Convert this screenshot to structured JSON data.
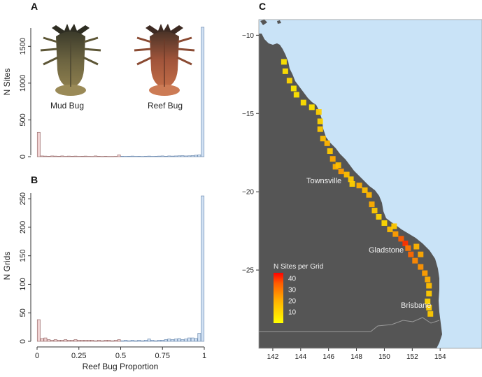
{
  "chart_data": [
    {
      "panel": "A",
      "type": "bar",
      "xlabel": "",
      "ylabel": "N Sites",
      "xlim": [
        0,
        1
      ],
      "ylim": [
        0,
        1750
      ],
      "yticks": [
        0,
        500,
        1000,
        1500
      ],
      "bin_width": 0.02,
      "bins_start": [
        0,
        0.02,
        0.04,
        0.06,
        0.08,
        0.1,
        0.12,
        0.14,
        0.16,
        0.18,
        0.2,
        0.22,
        0.24,
        0.26,
        0.28,
        0.3,
        0.32,
        0.34,
        0.36,
        0.38,
        0.4,
        0.42,
        0.44,
        0.46,
        0.48,
        0.5,
        0.52,
        0.54,
        0.56,
        0.58,
        0.6,
        0.62,
        0.64,
        0.66,
        0.68,
        0.7,
        0.72,
        0.74,
        0.76,
        0.78,
        0.8,
        0.82,
        0.84,
        0.86,
        0.88,
        0.9,
        0.92,
        0.94,
        0.96,
        0.98
      ],
      "values": [
        330,
        10,
        8,
        6,
        10,
        8,
        6,
        10,
        5,
        8,
        6,
        8,
        5,
        6,
        8,
        5,
        4,
        10,
        6,
        4,
        6,
        4,
        4,
        5,
        25,
        6,
        5,
        6,
        8,
        5,
        6,
        4,
        6,
        8,
        5,
        6,
        8,
        10,
        6,
        10,
        8,
        10,
        12,
        14,
        10,
        12,
        15,
        20,
        25,
        1760
      ],
      "image_labels": [
        "Mud Bug",
        "Reef Bug"
      ]
    },
    {
      "panel": "B",
      "type": "bar",
      "xlabel": "Reef Bug Proportion",
      "ylabel": "N Grids",
      "xlim": [
        0,
        1
      ],
      "ylim": [
        0,
        260
      ],
      "yticks": [
        0,
        50,
        100,
        150,
        200,
        250
      ],
      "xticks": [
        "0",
        "0.25",
        "0.5",
        "0.75",
        "1"
      ],
      "bin_width": 0.02,
      "bins_start": [
        0,
        0.02,
        0.04,
        0.06,
        0.08,
        0.1,
        0.12,
        0.14,
        0.16,
        0.18,
        0.2,
        0.22,
        0.24,
        0.26,
        0.28,
        0.3,
        0.32,
        0.34,
        0.36,
        0.38,
        0.4,
        0.42,
        0.44,
        0.46,
        0.48,
        0.5,
        0.52,
        0.54,
        0.56,
        0.58,
        0.6,
        0.62,
        0.64,
        0.66,
        0.68,
        0.7,
        0.72,
        0.74,
        0.76,
        0.78,
        0.8,
        0.82,
        0.84,
        0.86,
        0.88,
        0.9,
        0.92,
        0.94,
        0.96,
        0.98
      ],
      "values": [
        38,
        5,
        6,
        3,
        2,
        3,
        2,
        2,
        3,
        2,
        2,
        3,
        2,
        2,
        2,
        2,
        2,
        1,
        2,
        1,
        2,
        2,
        1,
        2,
        3,
        1,
        2,
        1,
        2,
        1,
        2,
        1,
        2,
        4,
        2,
        1,
        2,
        2,
        3,
        4,
        3,
        4,
        5,
        3,
        4,
        6,
        6,
        5,
        14,
        255
      ]
    },
    {
      "panel": "C",
      "type": "heatmap",
      "xlim": [
        141,
        157
      ],
      "ylim": [
        -30,
        -9
      ],
      "xticks": [
        142,
        144,
        146,
        148,
        150,
        152,
        154
      ],
      "yticks": [
        -10,
        -15,
        -20,
        -25
      ],
      "ytick_labels": [
        "−10",
        "−15",
        "−20",
        "−25"
      ],
      "legend_title": "N Sites per Grid",
      "legend_ticks": [
        40,
        30,
        20,
        10
      ],
      "color_range": [
        0,
        45
      ],
      "cities": [
        "Townsville",
        "Gladstone",
        "Brisbane"
      ],
      "points": [
        [
          142.8,
          -11.7,
          5
        ],
        [
          142.9,
          -12.3,
          6
        ],
        [
          143.2,
          -12.9,
          8
        ],
        [
          143.5,
          -13.4,
          4
        ],
        [
          143.7,
          -13.8,
          5
        ],
        [
          144.2,
          -14.3,
          6
        ],
        [
          144.8,
          -14.6,
          5
        ],
        [
          145.3,
          -14.9,
          9
        ],
        [
          145.4,
          -15.5,
          8
        ],
        [
          145.4,
          -16.0,
          10
        ],
        [
          145.6,
          -16.6,
          12
        ],
        [
          145.9,
          -16.9,
          14
        ],
        [
          146.1,
          -17.4,
          10
        ],
        [
          146.3,
          -17.9,
          16
        ],
        [
          146.5,
          -18.4,
          15
        ],
        [
          146.9,
          -18.7,
          18
        ],
        [
          147.3,
          -18.9,
          12
        ],
        [
          147.6,
          -19.2,
          10
        ],
        [
          148.2,
          -19.6,
          15
        ],
        [
          148.6,
          -19.9,
          12
        ],
        [
          148.9,
          -20.2,
          14
        ],
        [
          149.1,
          -20.8,
          15
        ],
        [
          149.3,
          -21.2,
          10
        ],
        [
          149.6,
          -21.6,
          8
        ],
        [
          150.0,
          -22.0,
          7
        ],
        [
          150.4,
          -22.4,
          12
        ],
        [
          150.8,
          -22.7,
          18
        ],
        [
          151.2,
          -23.0,
          30
        ],
        [
          151.5,
          -23.3,
          38
        ],
        [
          151.7,
          -23.6,
          25
        ],
        [
          151.9,
          -24.0,
          28
        ],
        [
          152.2,
          -24.4,
          22
        ],
        [
          152.6,
          -24.8,
          20
        ],
        [
          152.9,
          -25.2,
          18
        ],
        [
          153.1,
          -25.6,
          15
        ],
        [
          153.2,
          -26.0,
          12
        ],
        [
          153.2,
          -26.5,
          10
        ],
        [
          153.1,
          -27.0,
          8
        ],
        [
          153.2,
          -27.4,
          9
        ],
        [
          153.3,
          -27.8,
          10
        ],
        [
          152.3,
          -23.5,
          14
        ],
        [
          152.6,
          -24.0,
          16
        ],
        [
          150.7,
          -22.2,
          10
        ],
        [
          146.7,
          -18.3,
          12
        ],
        [
          147.7,
          -19.5,
          9
        ]
      ]
    }
  ]
}
